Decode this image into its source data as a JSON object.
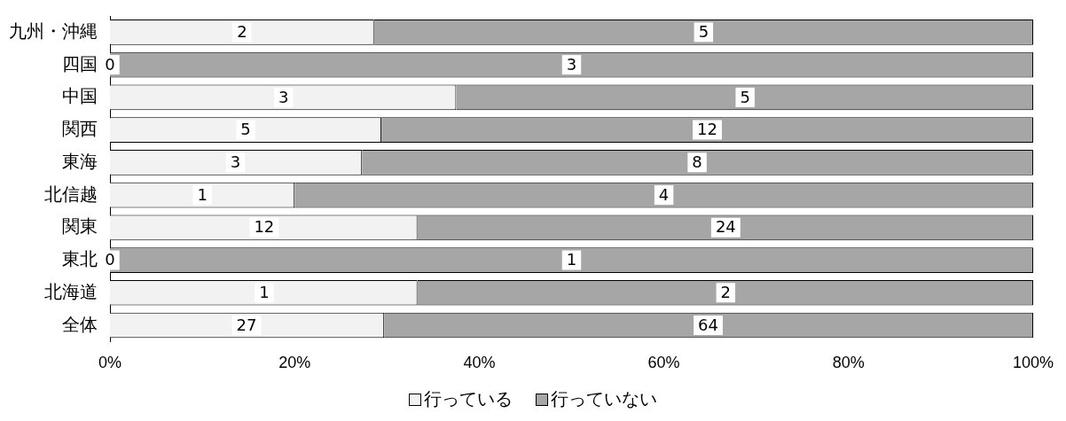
{
  "chart_data": {
    "type": "bar",
    "orientation": "horizontal",
    "stacked": true,
    "legend": "bottom",
    "grid": false,
    "categories": [
      "九州・沖縄",
      "四国",
      "中国",
      "関西",
      "東海",
      "北信越",
      "関東",
      "東北",
      "北海道",
      "全体"
    ],
    "series": [
      {
        "name": "行っている",
        "color": "#f2f2f2",
        "values": [
          28.6,
          0,
          37.5,
          29.4,
          27.3,
          20,
          33.3,
          0,
          33.3,
          29.7
        ]
      },
      {
        "name": "行っていない",
        "color": "#a6a6a6",
        "values": [
          71.4,
          100,
          62.5,
          70.6,
          72.7,
          80,
          66.7,
          100,
          66.7,
          70.3
        ]
      }
    ],
    "annotations": [
      {
        "text": "2",
        "x": 14.3,
        "y": "九州・沖縄"
      },
      {
        "text": "5",
        "x": 64.3,
        "y": "九州・沖縄"
      },
      {
        "text": "0",
        "x": 0,
        "y": "四国"
      },
      {
        "text": "3",
        "x": 50,
        "y": "四国"
      },
      {
        "text": "3",
        "x": 18.8,
        "y": "中国"
      },
      {
        "text": "5",
        "x": 68.8,
        "y": "中国"
      },
      {
        "text": "5",
        "x": 14.7,
        "y": "関西"
      },
      {
        "text": "12",
        "x": 64.7,
        "y": "関西"
      },
      {
        "text": "3",
        "x": 13.6,
        "y": "東海"
      },
      {
        "text": "8",
        "x": 63.6,
        "y": "東海"
      },
      {
        "text": "1",
        "x": 10,
        "y": "北信越"
      },
      {
        "text": "4",
        "x": 60,
        "y": "北信越"
      },
      {
        "text": "12",
        "x": 16.7,
        "y": "関東"
      },
      {
        "text": "24",
        "x": 66.7,
        "y": "関東"
      },
      {
        "text": "0",
        "x": 0,
        "y": "東北"
      },
      {
        "text": "1",
        "x": 50,
        "y": "東北"
      },
      {
        "text": "1",
        "x": 16.7,
        "y": "北海道"
      },
      {
        "text": "2",
        "x": 66.7,
        "y": "北海道"
      },
      {
        "text": "27",
        "x": 14.8,
        "y": "全体"
      },
      {
        "text": "64",
        "x": 64.8,
        "y": "全体"
      }
    ],
    "xlim": [
      0,
      100
    ],
    "xticks": [
      {
        "value": 0,
        "label": "0%"
      },
      {
        "value": 20,
        "label": "20%"
      },
      {
        "value": 40,
        "label": "40%"
      },
      {
        "value": 60,
        "label": "60%"
      },
      {
        "value": 80,
        "label": "80%"
      },
      {
        "value": 100,
        "label": "100%"
      }
    ]
  }
}
